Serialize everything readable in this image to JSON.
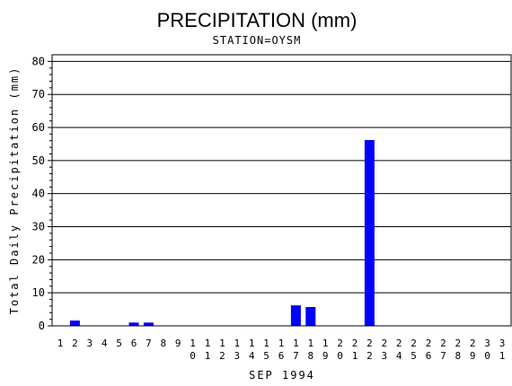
{
  "chart_data": {
    "type": "bar",
    "title": "PRECIPITATION (mm)",
    "subtitle": "STATION=OYSM",
    "ylabel": "Total Daily Precipitation (mm)",
    "xlabel": "SEP 1994",
    "ylim": [
      0,
      82
    ],
    "yticks": [
      0,
      10,
      20,
      30,
      40,
      50,
      60,
      70,
      80
    ],
    "grid": true,
    "categories": [
      "1",
      "2",
      "3",
      "4",
      "5",
      "6",
      "7",
      "8",
      "9",
      "10",
      "11",
      "12",
      "13",
      "14",
      "15",
      "16",
      "17",
      "18",
      "19",
      "20",
      "21",
      "22",
      "23",
      "24",
      "25",
      "26",
      "27",
      "28",
      "29",
      "30",
      "31"
    ],
    "values": [
      0,
      1.6,
      0,
      0,
      0,
      1.0,
      1.0,
      0,
      0,
      0,
      0,
      0,
      0,
      0,
      0,
      0,
      6.2,
      5.7,
      0,
      0,
      0,
      56.2,
      0,
      0,
      0,
      0,
      0,
      0,
      0,
      0,
      0
    ],
    "bar_color": "#0000ff"
  }
}
